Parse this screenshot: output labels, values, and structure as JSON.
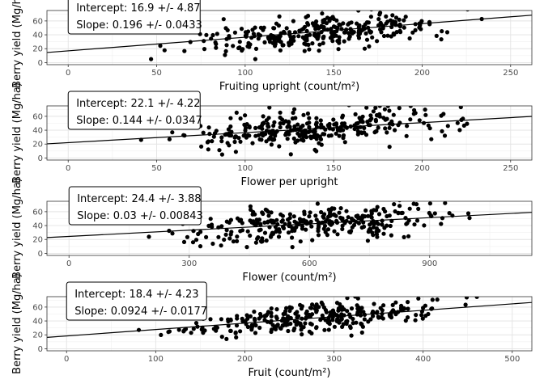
{
  "chart_data": [
    {
      "type": "scatter",
      "xlabel": "Fruiting upright (count/m²)",
      "ylabel": "Berry yield (Mg/ha)",
      "xlim": [
        -12,
        262
      ],
      "ylim": [
        -3,
        75
      ],
      "xticks": [
        0,
        50,
        100,
        150,
        200,
        250
      ],
      "yticks": [
        0,
        20,
        40,
        60
      ],
      "annotation": {
        "top_line": "Intercept: 16.9 +/- 4.87",
        "slope_label": "Slope: 0.196 +/- 0.0433"
      },
      "fit": {
        "intercept": 16.9,
        "slope": 0.196
      },
      "points_summary": {
        "n": 300,
        "x_range": [
          38,
          242
        ],
        "y_range": [
          5,
          78
        ],
        "noise_sd": 12,
        "seed": 11
      }
    },
    {
      "type": "scatter",
      "xlabel": "Flower per upright",
      "ylabel": "Berry yield (Mg/ha)",
      "xlim": [
        -12,
        262
      ],
      "ylim": [
        -3,
        75
      ],
      "xticks": [
        0,
        50,
        100,
        150,
        200,
        250
      ],
      "yticks": [
        0,
        20,
        40,
        60
      ],
      "annotation": {
        "top_line": "Intercept: 22.1 +/- 4.22",
        "slope_label": "Slope: 0.144 +/- 0.0347"
      },
      "fit": {
        "intercept": 22.1,
        "slope": 0.144
      },
      "points_summary": {
        "n": 300,
        "x_range": [
          30,
          252
        ],
        "y_range": [
          5,
          78
        ],
        "noise_sd": 12,
        "seed": 23
      }
    },
    {
      "type": "scatter",
      "xlabel": "Flower (count/m²)",
      "ylabel": "Berry yield (Mg/ha)",
      "xlim": [
        -55,
        1155
      ],
      "ylim": [
        -3,
        75
      ],
      "xticks": [
        0,
        300,
        600,
        900
      ],
      "xticklabels": [
        "0",
        "300",
        "600",
        "900"
      ],
      "yticks": [
        0,
        20,
        40,
        60
      ],
      "annotation": {
        "top_line": "Intercept: 24.4 +/- 3.88",
        "slope_label": "Slope: 0.03 +/- 0.00843"
      },
      "fit": {
        "intercept": 24.4,
        "slope": 0.03
      },
      "points_summary": {
        "n": 300,
        "x_range": [
          110,
          1100
        ],
        "y_range": [
          5,
          78
        ],
        "noise_sd": 12,
        "seed": 37
      }
    },
    {
      "type": "scatter",
      "xlabel": "Fruit (count/m²)",
      "ylabel": "Berry yield (Mg/ha)",
      "xlim": [
        -22,
        522
      ],
      "ylim": [
        -3,
        75
      ],
      "xticks": [
        0,
        100,
        200,
        300,
        400,
        500
      ],
      "yticks": [
        0,
        20,
        40,
        60
      ],
      "annotation": {
        "top_line": "Intercept: 18.4 +/- 4.23",
        "slope_label": "Slope: 0.0924 +/- 0.0177"
      },
      "fit": {
        "intercept": 18.4,
        "slope": 0.0924
      },
      "points_summary": {
        "n": 300,
        "x_range": [
          60,
          500
        ],
        "y_range": [
          5,
          78
        ],
        "noise_sd": 11,
        "seed": 53
      }
    }
  ]
}
